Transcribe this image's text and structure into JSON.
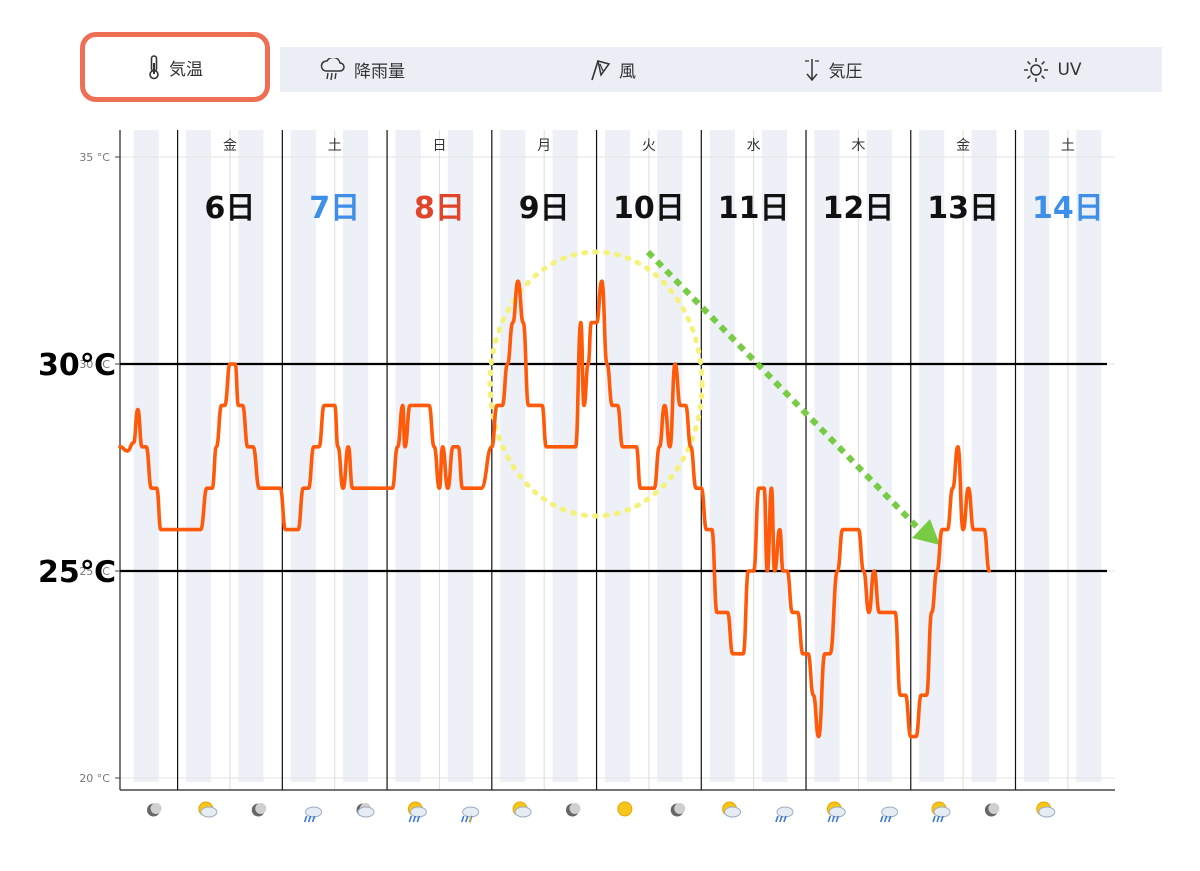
{
  "tabs": [
    {
      "label": "気温",
      "icon": "thermometer-icon",
      "active": true
    },
    {
      "label": "降雨量",
      "icon": "rain-cloud-icon",
      "active": false
    },
    {
      "label": "風",
      "icon": "windsock-icon",
      "active": false
    },
    {
      "label": "気圧",
      "icon": "pressure-arrow-icon",
      "active": false
    },
    {
      "label": "UV",
      "icon": "sun-icon",
      "active": false
    }
  ],
  "colors": {
    "accent": "#ef6f55",
    "line": "#ff5a0a",
    "saturday": "#3d8fe8",
    "sunday": "#e0442a",
    "weekday": "#111111",
    "ellipse": "#f4f27a",
    "arrow": "#77cc44",
    "band": "#eef0f7"
  },
  "chart_data": {
    "type": "line",
    "ylim": [
      20,
      35
    ],
    "ytick_labels": [
      {
        "value": 35,
        "label": "35 °C"
      },
      {
        "value": 30,
        "label": "30 °C"
      },
      {
        "value": 25,
        "label": "25 °C"
      },
      {
        "value": 20,
        "label": "20 °C"
      }
    ],
    "annotations": [
      {
        "value": 30,
        "label": "30℃"
      },
      {
        "value": 25,
        "label": "25℃"
      }
    ],
    "days": [
      {
        "weekday": "金",
        "date": "6日",
        "kind": "weekday"
      },
      {
        "weekday": "土",
        "date": "7日",
        "kind": "saturday"
      },
      {
        "weekday": "日",
        "date": "8日",
        "kind": "sunday"
      },
      {
        "weekday": "月",
        "date": "9日",
        "kind": "weekday"
      },
      {
        "weekday": "火",
        "date": "10日",
        "kind": "weekday"
      },
      {
        "weekday": "水",
        "date": "11日",
        "kind": "weekday"
      },
      {
        "weekday": "木",
        "date": "12日",
        "kind": "weekday"
      },
      {
        "weekday": "金",
        "date": "13日",
        "kind": "weekday"
      },
      {
        "weekday": "土",
        "date": "14日",
        "kind": "saturday"
      }
    ],
    "x_range_days": [
      5.45,
      14.95
    ],
    "series": [
      {
        "values": [
          [
            5.45,
            28.0
          ],
          [
            5.52,
            27.9
          ],
          [
            5.58,
            28.1
          ],
          [
            5.62,
            28.9
          ],
          [
            5.66,
            28.0
          ],
          [
            5.7,
            28.0
          ],
          [
            5.75,
            27.0
          ],
          [
            5.8,
            27.0
          ],
          [
            5.84,
            26.0
          ],
          [
            5.9,
            26.0
          ],
          [
            6.0,
            26.0
          ],
          [
            6.15,
            26.0
          ],
          [
            6.22,
            26.0
          ],
          [
            6.28,
            27.0
          ],
          [
            6.33,
            27.0
          ],
          [
            6.37,
            28.0
          ],
          [
            6.42,
            29.0
          ],
          [
            6.45,
            29.0
          ],
          [
            6.5,
            30.0
          ],
          [
            6.55,
            30.0
          ],
          [
            6.58,
            29.0
          ],
          [
            6.62,
            29.0
          ],
          [
            6.67,
            28.0
          ],
          [
            6.72,
            28.0
          ],
          [
            6.78,
            27.0
          ],
          [
            6.85,
            27.0
          ],
          [
            6.92,
            27.0
          ],
          [
            6.98,
            27.0
          ],
          [
            7.03,
            26.0
          ],
          [
            7.1,
            26.0
          ],
          [
            7.15,
            26.0
          ],
          [
            7.2,
            27.0
          ],
          [
            7.25,
            27.0
          ],
          [
            7.3,
            28.0
          ],
          [
            7.35,
            28.0
          ],
          [
            7.4,
            29.0
          ],
          [
            7.45,
            29.0
          ],
          [
            7.5,
            29.0
          ],
          [
            7.53,
            28.0
          ],
          [
            7.58,
            27.0
          ],
          [
            7.63,
            28.0
          ],
          [
            7.67,
            27.0
          ],
          [
            7.75,
            27.0
          ],
          [
            7.85,
            27.0
          ],
          [
            7.95,
            27.0
          ],
          [
            8.0,
            27.0
          ],
          [
            8.05,
            27.0
          ],
          [
            8.1,
            28.0
          ],
          [
            8.15,
            29.0
          ],
          [
            8.17,
            28.0
          ],
          [
            8.22,
            29.0
          ],
          [
            8.3,
            29.0
          ],
          [
            8.4,
            29.0
          ],
          [
            8.45,
            28.0
          ],
          [
            8.5,
            27.0
          ],
          [
            8.53,
            28.0
          ],
          [
            8.58,
            27.0
          ],
          [
            8.63,
            28.0
          ],
          [
            8.68,
            28.0
          ],
          [
            8.72,
            27.0
          ],
          [
            8.8,
            27.0
          ],
          [
            8.9,
            27.0
          ],
          [
            9.0,
            28.0
          ],
          [
            9.05,
            29.0
          ],
          [
            9.1,
            29.0
          ],
          [
            9.15,
            30.0
          ],
          [
            9.2,
            31.0
          ],
          [
            9.25,
            32.0
          ],
          [
            9.3,
            31.0
          ],
          [
            9.35,
            29.0
          ],
          [
            9.4,
            29.0
          ],
          [
            9.48,
            29.0
          ],
          [
            9.52,
            28.0
          ],
          [
            9.6,
            28.0
          ],
          [
            9.75,
            28.0
          ],
          [
            9.8,
            28.0
          ],
          [
            9.85,
            31.0
          ],
          [
            9.88,
            29.0
          ],
          [
            9.92,
            30.0
          ],
          [
            9.95,
            31.0
          ],
          [
            10.0,
            31.0
          ],
          [
            10.05,
            32.0
          ],
          [
            10.1,
            30.0
          ],
          [
            10.15,
            29.0
          ],
          [
            10.2,
            29.0
          ],
          [
            10.25,
            28.0
          ],
          [
            10.3,
            28.0
          ],
          [
            10.38,
            28.0
          ],
          [
            10.42,
            27.0
          ],
          [
            10.5,
            27.0
          ],
          [
            10.55,
            27.0
          ],
          [
            10.6,
            28.0
          ],
          [
            10.65,
            29.0
          ],
          [
            10.7,
            28.0
          ],
          [
            10.75,
            30.0
          ],
          [
            10.8,
            29.0
          ],
          [
            10.85,
            29.0
          ],
          [
            10.9,
            28.0
          ],
          [
            10.95,
            27.0
          ],
          [
            11.0,
            27.0
          ],
          [
            11.05,
            26.0
          ],
          [
            11.1,
            26.0
          ],
          [
            11.15,
            24.0
          ],
          [
            11.2,
            24.0
          ],
          [
            11.25,
            24.0
          ],
          [
            11.3,
            23.0
          ],
          [
            11.35,
            23.0
          ],
          [
            11.4,
            23.0
          ],
          [
            11.45,
            25.0
          ],
          [
            11.5,
            25.0
          ],
          [
            11.55,
            27.0
          ],
          [
            11.6,
            27.0
          ],
          [
            11.63,
            25.0
          ],
          [
            11.67,
            27.0
          ],
          [
            11.7,
            25.0
          ],
          [
            11.75,
            26.0
          ],
          [
            11.78,
            25.0
          ],
          [
            11.82,
            25.0
          ],
          [
            11.87,
            24.0
          ],
          [
            11.92,
            24.0
          ],
          [
            11.97,
            23.0
          ],
          [
            12.02,
            23.0
          ],
          [
            12.07,
            22.0
          ],
          [
            12.12,
            21.0
          ],
          [
            12.18,
            23.0
          ],
          [
            12.23,
            23.0
          ],
          [
            12.3,
            25.0
          ],
          [
            12.35,
            26.0
          ],
          [
            12.4,
            26.0
          ],
          [
            12.45,
            26.0
          ],
          [
            12.5,
            26.0
          ],
          [
            12.55,
            25.0
          ],
          [
            12.6,
            24.0
          ],
          [
            12.65,
            25.0
          ],
          [
            12.7,
            24.0
          ],
          [
            12.75,
            24.0
          ],
          [
            12.8,
            24.0
          ],
          [
            12.85,
            24.0
          ],
          [
            12.9,
            22.0
          ],
          [
            12.95,
            22.0
          ],
          [
            13.0,
            21.0
          ],
          [
            13.05,
            21.0
          ],
          [
            13.1,
            22.0
          ],
          [
            13.15,
            22.0
          ],
          [
            13.2,
            24.0
          ],
          [
            13.25,
            25.0
          ],
          [
            13.3,
            26.0
          ],
          [
            13.35,
            26.0
          ],
          [
            13.4,
            27.0
          ],
          [
            13.45,
            28.0
          ],
          [
            13.5,
            26.0
          ],
          [
            13.55,
            27.0
          ],
          [
            13.6,
            26.0
          ],
          [
            13.65,
            26.0
          ],
          [
            13.7,
            26.0
          ],
          [
            13.75,
            25.0
          ]
        ]
      }
    ]
  }
}
